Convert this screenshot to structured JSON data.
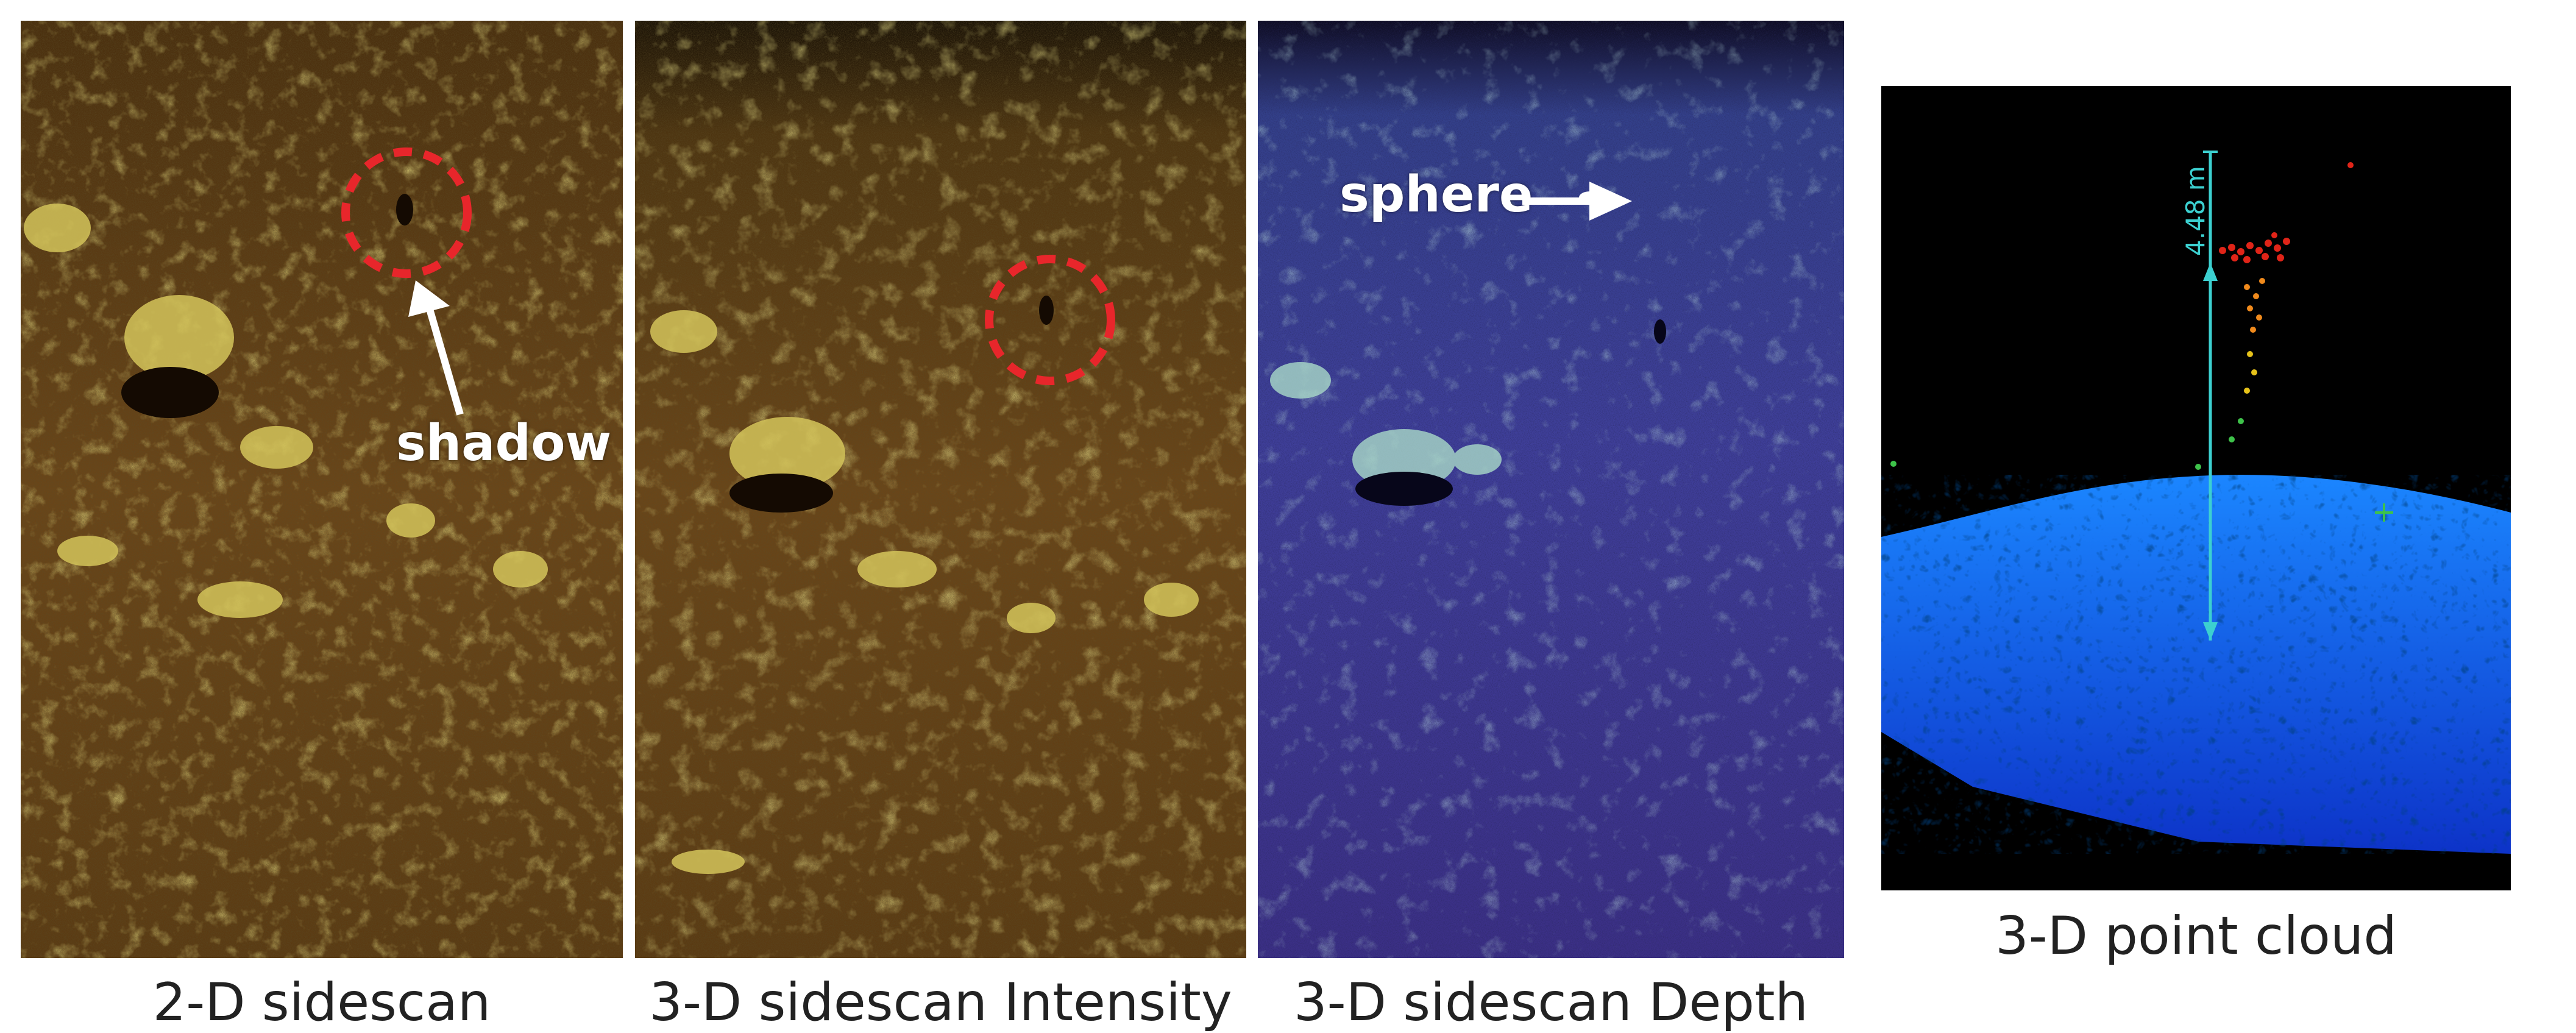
{
  "panels": [
    {
      "caption": "2-D sidescan"
    },
    {
      "caption": "3-D sidescan Intensity"
    },
    {
      "caption": "3-D sidescan Depth"
    },
    {
      "caption": "3-D point cloud"
    }
  ],
  "annotations": {
    "shadow_label": "shadow",
    "sphere_label": "sphere",
    "height_label": "4.48 m"
  },
  "colors": {
    "sidescan_base": "#5a3a12",
    "sidescan_highlight": "#c9b43a",
    "depth_base": "#3a2f8f",
    "depth_highlight": "#9fd6c0",
    "cloud_seafloor": "#1f6fe6",
    "cloud_object_top": "#e02418",
    "highlight_circle": "#e8262b",
    "scale_line": "#3cd0d0"
  }
}
